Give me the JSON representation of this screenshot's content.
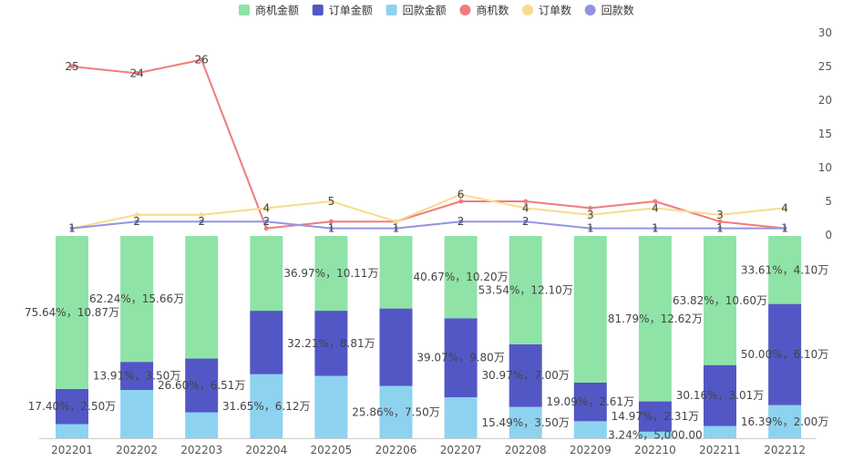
{
  "chart_data": {
    "type": "bar",
    "categories": [
      "202201",
      "202202",
      "202203",
      "202204",
      "202205",
      "202206",
      "202207",
      "202208",
      "202209",
      "202210",
      "202211",
      "202212"
    ],
    "legend": {
      "placement": "top-center",
      "items": [
        {
          "name": "商机金额",
          "kind": "bar",
          "color": "#8fe3a7"
        },
        {
          "name": "订单金额",
          "kind": "bar",
          "color": "#5257c5"
        },
        {
          "name": "回款金额",
          "kind": "bar",
          "color": "#8dd3f0"
        },
        {
          "name": "商机数",
          "kind": "line",
          "color": "#f27b7b"
        },
        {
          "name": "订单数",
          "kind": "line",
          "color": "#f7dc8b"
        },
        {
          "name": "回款数",
          "kind": "line",
          "color": "#9393e4"
        }
      ]
    },
    "bar_series": [
      {
        "name": "回款金额",
        "color": "#8dd3f0",
        "pct": [
          6.96,
          23.85,
          12.8,
          31.65,
          30.82,
          25.86,
          20.26,
          15.49,
          8.4,
          3.24,
          6.02,
          16.39
        ],
        "labels": [
          "",
          "",
          "",
          "31.65%，6.12万",
          "",
          "25.86%，7.50万",
          "",
          "15.49%，3.50万",
          "",
          "3.24%，5,000.00",
          "",
          "16.39%，2.00万"
        ]
      },
      {
        "name": "订单金额",
        "color": "#5257c5",
        "pct": [
          17.4,
          13.91,
          26.6,
          31.38,
          32.21,
          38.28,
          39.07,
          30.97,
          19.09,
          14.97,
          30.16,
          50.0
        ],
        "labels": [
          "17.40%，2.50万",
          "13.91%，3.50万",
          "26.60%，6.51万",
          "",
          "32.21%，8.81万",
          "",
          "39.07%，9.80万",
          "30.97%，7.00万",
          "19.09%，2.61万",
          "14.97%，2.31万",
          "30.16%，3.01万",
          "50.00%，6.10万"
        ]
      },
      {
        "name": "商机金额",
        "color": "#8fe3a7",
        "pct": [
          75.64,
          62.24,
          60.6,
          36.97,
          36.97,
          35.86,
          40.67,
          53.54,
          72.51,
          81.79,
          63.82,
          33.61
        ],
        "labels": [
          "75.64%，10.87万",
          "62.24%，15.66万",
          "",
          "",
          "36.97%，10.11万",
          "",
          "40.67%，10.20万",
          "53.54%，12.10万",
          "",
          "81.79%，12.62万",
          "63.82%，10.60万",
          "33.61%，4.10万"
        ]
      }
    ],
    "line_series": [
      {
        "name": "商机数",
        "color": "#f27b7b",
        "values": [
          25,
          24,
          26,
          1,
          2,
          2,
          5,
          5,
          4,
          5,
          2,
          1
        ],
        "labels": [
          "25",
          "24",
          "26",
          "",
          "",
          "",
          "",
          "",
          "",
          "",
          "",
          ""
        ]
      },
      {
        "name": "订单数",
        "color": "#f7dc8b",
        "values": [
          1,
          3,
          3,
          4,
          5,
          2,
          6,
          4,
          3,
          4,
          3,
          4
        ],
        "labels": [
          "",
          "",
          "",
          "4",
          "5",
          "",
          "6",
          "4",
          "3",
          "4",
          "3",
          "4"
        ]
      },
      {
        "name": "回款数",
        "color": "#9393e4",
        "values": [
          1,
          2,
          2,
          2,
          1,
          1,
          2,
          2,
          1,
          1,
          1,
          1
        ],
        "labels": [
          "1",
          "2",
          "2",
          "2",
          "1",
          "1",
          "2",
          "2",
          "1",
          "1",
          "1",
          "1"
        ]
      }
    ],
    "y_right": {
      "min": 0,
      "max": 30,
      "ticks": [
        "0",
        "5",
        "10",
        "15",
        "20",
        "25",
        "30"
      ]
    },
    "grid": false
  }
}
